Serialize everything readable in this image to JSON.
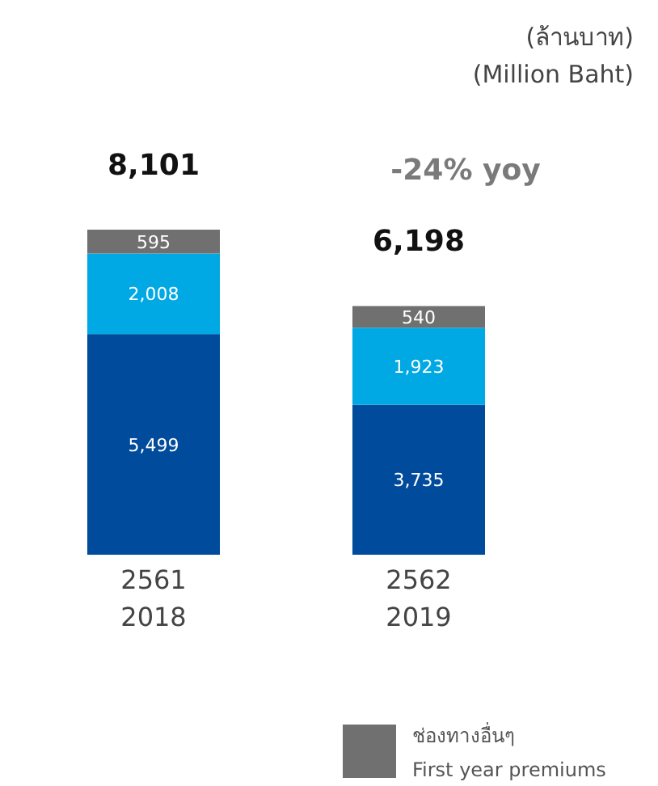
{
  "chart_data": {
    "type": "bar",
    "stacked": true,
    "categories": [
      "2561\n2018",
      "2562\n2019"
    ],
    "series": [
      {
        "color": "#004b9b",
        "values": [
          5499,
          3735
        ],
        "value_labels": [
          "5,499",
          "3,735"
        ]
      },
      {
        "color": "#00a8e4",
        "values": [
          2008,
          1923
        ],
        "value_labels": [
          "2,008",
          "1,923"
        ]
      },
      {
        "name": "ช่องทางอื่นๆ\nFirst year premiums",
        "color": "#707070",
        "values": [
          595,
          540
        ],
        "value_labels": [
          "595",
          "540"
        ]
      }
    ],
    "totals": [
      "8,101",
      "6,198"
    ],
    "annotations": [
      "(ล้านบาท)",
      "(Million Baht)",
      "-24% yoy"
    ],
    "legend": "bottom right"
  }
}
